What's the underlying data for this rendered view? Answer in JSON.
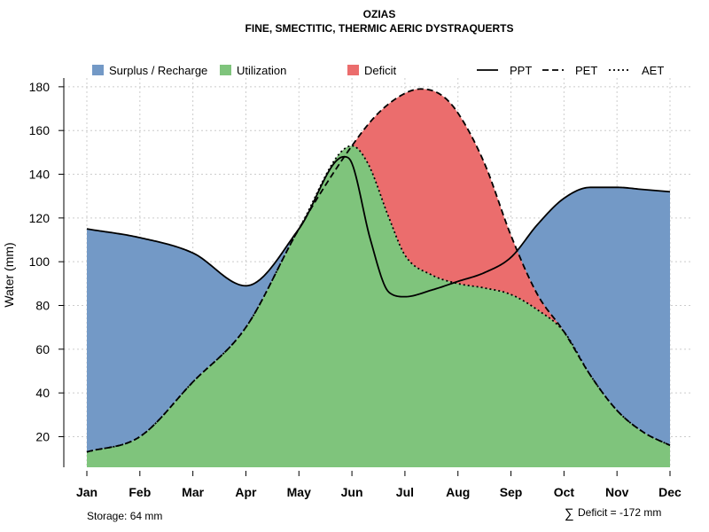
{
  "chart_data": {
    "type": "area",
    "title": "OZIAS",
    "subtitle": "FINE, SMECTITIC, THERMIC AERIC DYSTRAQUERTS",
    "xlabel": "",
    "ylabel": "Water (mm)",
    "categories": [
      "Jan",
      "Feb",
      "Mar",
      "Apr",
      "May",
      "Jun",
      "Jul",
      "Aug",
      "Sep",
      "Oct",
      "Nov",
      "Dec"
    ],
    "yticks": [
      20,
      40,
      60,
      80,
      100,
      120,
      140,
      160,
      180
    ],
    "ylim": [
      6,
      184
    ],
    "grid": true,
    "series": [
      {
        "name": "PPT",
        "line": "solid",
        "x": [
          0,
          1,
          2,
          3,
          4,
          4.85,
          5,
          5.35,
          5.7,
          6,
          6.5,
          7,
          7.5,
          8,
          8.5,
          9,
          9.5,
          10,
          10.5,
          11
        ],
        "values": [
          115,
          111,
          104,
          89,
          115,
          148,
          145,
          110,
          86,
          84,
          87,
          91,
          95,
          102,
          117,
          129,
          134,
          134,
          133,
          132
        ]
      },
      {
        "name": "PET",
        "line": "dashed",
        "x": [
          0,
          1,
          2,
          3,
          4,
          5,
          5.5,
          6,
          6.3,
          6.7,
          7,
          7.5,
          8,
          8.5,
          9,
          9.5,
          10,
          10.5,
          11
        ],
        "values": [
          13,
          20,
          45,
          70,
          115,
          153,
          168,
          177,
          179,
          176,
          168,
          145,
          112,
          85,
          68,
          48,
          32,
          22,
          16
        ]
      },
      {
        "name": "AET",
        "line": "dotted",
        "x": [
          0,
          1,
          2,
          3,
          4,
          5,
          5.3,
          5.7,
          6,
          6.5,
          7,
          7.5,
          8,
          8.5,
          9,
          9.5,
          10,
          10.5,
          11
        ],
        "values": [
          13,
          20,
          45,
          70,
          115,
          153,
          145,
          120,
          103,
          94,
          90,
          88,
          85,
          78,
          68,
          48,
          32,
          22,
          16
        ]
      }
    ],
    "legend": [
      {
        "label": "Surplus / Recharge",
        "kind": "fill",
        "color": "#7399c6"
      },
      {
        "label": "Utilization",
        "kind": "fill",
        "color": "#7fc47c"
      },
      {
        "label": "Deficit",
        "kind": "fill",
        "color": "#eb6d6d"
      },
      {
        "label": "PPT",
        "kind": "solid"
      },
      {
        "label": "PET",
        "kind": "dashed"
      },
      {
        "label": "AET",
        "kind": "dotted"
      }
    ],
    "legend_position": "top",
    "colors": {
      "surplus": "#7399c6",
      "utilization": "#7fc47c",
      "deficit": "#eb6d6d",
      "grid": "#cccccc"
    }
  },
  "footer": {
    "storage": "Storage: 64 mm",
    "deficit_symbol": "∑",
    "deficit_text": "Deficit = -172 mm"
  }
}
